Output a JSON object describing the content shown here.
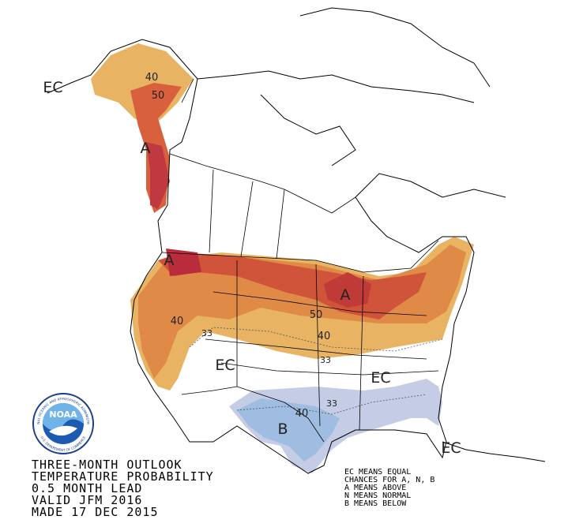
{
  "title_lines": [
    "THREE-MONTH OUTLOOK",
    "TEMPERATURE PROBABILITY",
    "0.5 MONTH LEAD",
    "VALID JFM 2016",
    "MADE 17 DEC 2015"
  ],
  "legend_lines": [
    "EC MEANS EQUAL",
    "CHANCES FOR A, N, B",
    "A MEANS ABOVE",
    "N MEANS NORMAL",
    "B MEANS BELOW"
  ],
  "logo": {
    "text": "NOAA",
    "ring_top": "NATIONAL OCEANIC AND ATMOSPHERIC ADMINISTRATION",
    "ring_bottom": "U.S. DEPARTMENT OF COMMERCE"
  },
  "map_labels": [
    "EC",
    "40",
    "50",
    "A",
    "A",
    "A",
    "40",
    "33",
    "50",
    "40",
    "33",
    "EC",
    "EC",
    "33",
    "40",
    "B",
    "EC"
  ]
}
